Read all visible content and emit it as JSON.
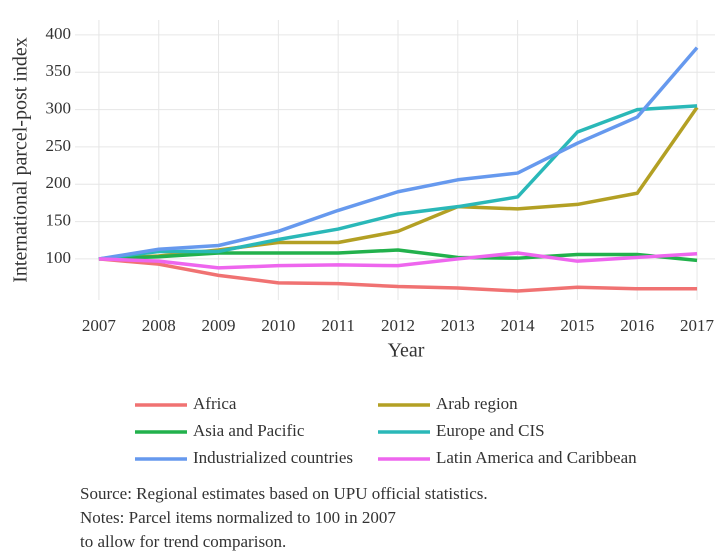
{
  "chart_data": {
    "type": "line",
    "x_label": "Year",
    "y_label": "International parcel-post index",
    "x": [
      2007,
      2008,
      2009,
      2010,
      2011,
      2012,
      2013,
      2014,
      2015,
      2016,
      2017
    ],
    "xlim": [
      2006.6,
      2017.3
    ],
    "xticks": [
      2007,
      2008,
      2009,
      2010,
      2011,
      2012,
      2013,
      2014,
      2015,
      2016,
      2017
    ],
    "ylim": [
      45,
      420
    ],
    "yticks": [
      100,
      150,
      200,
      250,
      300,
      350,
      400
    ],
    "grid": true,
    "series": [
      {
        "name": "Africa",
        "color": "#f07272",
        "values": [
          100,
          93,
          78,
          68,
          67,
          63,
          61,
          57,
          62,
          60,
          60
        ]
      },
      {
        "name": "Arab region",
        "color": "#b3a024",
        "values": [
          100,
          104,
          112,
          122,
          122,
          137,
          170,
          167,
          173,
          188,
          303
        ]
      },
      {
        "name": "Asia and Pacific",
        "color": "#22b14c",
        "values": [
          100,
          103,
          108,
          108,
          108,
          112,
          102,
          101,
          106,
          106,
          98
        ]
      },
      {
        "name": "Europe and CIS",
        "color": "#2ab8b8",
        "values": [
          100,
          110,
          110,
          126,
          140,
          160,
          170,
          183,
          270,
          300,
          305
        ]
      },
      {
        "name": "Industrialized countries",
        "color": "#6699ee",
        "values": [
          100,
          113,
          118,
          137,
          165,
          190,
          206,
          215,
          255,
          290,
          383
        ]
      },
      {
        "name": "Latin America and Caribbean",
        "color": "#ee66ee",
        "values": [
          100,
          97,
          88,
          91,
          92,
          91,
          100,
          108,
          97,
          102,
          107
        ]
      }
    ],
    "notes": [
      "Source: Regional estimates based on UPU official statistics.",
      "Notes: Parcel items normalized to 100 in 2007",
      "to allow for trend comparison."
    ]
  }
}
